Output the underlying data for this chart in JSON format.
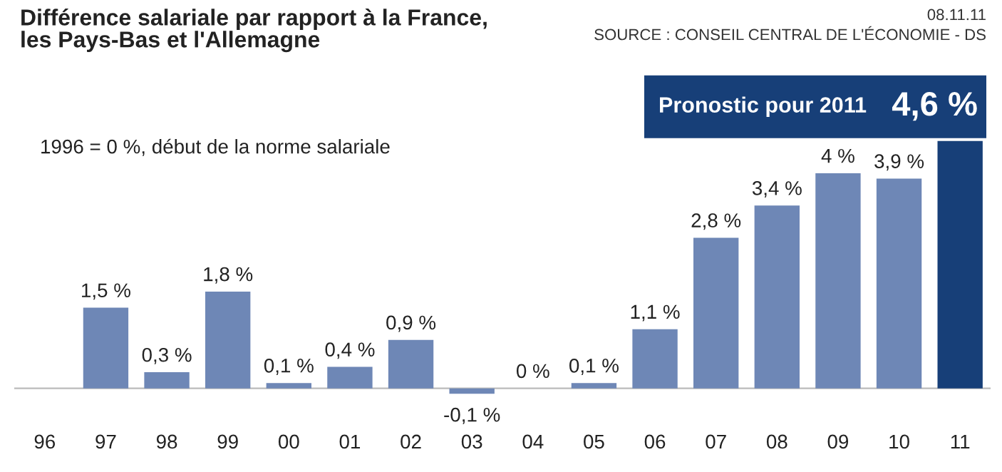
{
  "chart_data": {
    "type": "bar",
    "title": "Différence salariale par rapport à la France,\nles Pays-Bas et l'Allemagne",
    "categories": [
      "96",
      "97",
      "98",
      "99",
      "00",
      "01",
      "02",
      "03",
      "04",
      "05",
      "06",
      "07",
      "08",
      "09",
      "10",
      "11"
    ],
    "values": [
      0,
      1.5,
      0.3,
      1.8,
      0.1,
      0.4,
      0.9,
      -0.1,
      0,
      0.1,
      1.1,
      2.8,
      3.4,
      4,
      3.9,
      4.6
    ],
    "colors": [
      "#6e87b6",
      "#6e87b6",
      "#6e87b6",
      "#6e87b6",
      "#6e87b6",
      "#6e87b6",
      "#6e87b6",
      "#6e87b6",
      "#6e87b6",
      "#6e87b6",
      "#6e87b6",
      "#6e87b6",
      "#6e87b6",
      "#6e87b6",
      "#6e87b6",
      "#173f78"
    ],
    "value_labels": [
      null,
      "1,5 %",
      "0,3 %",
      "1,8 %",
      "0,1 %",
      "0,4 %",
      "0,9 %",
      "-0,1 %",
      "0 %",
      "0,1 %",
      "1,1 %",
      "2,8 %",
      "3,4 %",
      "4 %",
      "3,9 %",
      "4,6 %"
    ],
    "grid": false,
    "annotations": [
      "08.11.11",
      "SOURCE : CONSEIL CENTRAL DE L'ÉCONOMIE - DS",
      "1996 = 0 %, début de la norme salariale",
      "Pronostic pour 2011"
    ]
  }
}
